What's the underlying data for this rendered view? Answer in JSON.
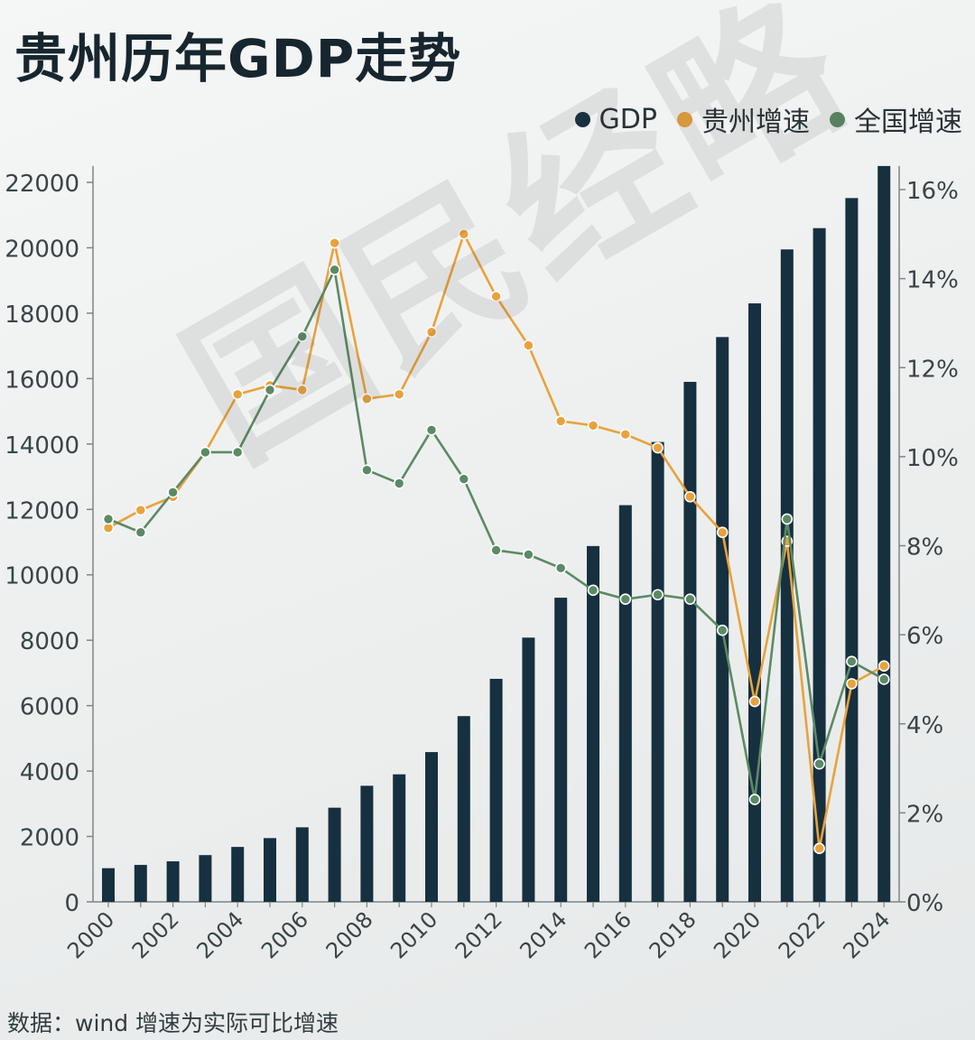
{
  "title": "贵州历年GDP走势",
  "watermark": "国民经略",
  "source": "数据：wind  增速为实际可比增速",
  "legend": [
    {
      "label": "GDP",
      "color": "#17303f"
    },
    {
      "label": "贵州增速",
      "color": "#e9a23b"
    },
    {
      "label": "全国增速",
      "color": "#5b8a64"
    }
  ],
  "chart_data": {
    "type": "bar",
    "title": "贵州历年GDP走势",
    "x": [
      2000,
      2001,
      2002,
      2003,
      2004,
      2005,
      2006,
      2007,
      2008,
      2009,
      2010,
      2011,
      2012,
      2013,
      2014,
      2015,
      2016,
      2017,
      2018,
      2019,
      2020,
      2021,
      2022,
      2023,
      2024
    ],
    "x_tick_labels": [
      "2000",
      "2002",
      "2004",
      "2006",
      "2008",
      "2010",
      "2012",
      "2014",
      "2016",
      "2018",
      "2020",
      "2022",
      "2024"
    ],
    "left_axis": {
      "ylim": [
        0,
        22500
      ],
      "ticks": [
        0,
        2000,
        4000,
        6000,
        8000,
        10000,
        12000,
        14000,
        16000,
        18000,
        20000,
        22000
      ]
    },
    "right_axis": {
      "ylim": [
        0,
        16.5
      ],
      "ticks": [
        0,
        2,
        4,
        6,
        8,
        10,
        12,
        14,
        16
      ],
      "tick_labels": [
        "0%",
        "2%",
        "4%",
        "6%",
        "8%",
        "10%",
        "12%",
        "14%",
        "16%"
      ]
    },
    "grid": false,
    "legend_position": "top-right",
    "series": [
      {
        "name": "GDP",
        "type": "bar",
        "axis": "left",
        "values": [
          1030,
          1130,
          1240,
          1430,
          1680,
          1950,
          2280,
          2880,
          3550,
          3900,
          4580,
          5680,
          6820,
          8080,
          9300,
          10880,
          12130,
          14060,
          15900,
          17270,
          18300,
          19950,
          20600,
          21520,
          22660
        ]
      },
      {
        "name": "贵州增速",
        "type": "line",
        "axis": "right",
        "values": [
          8.4,
          8.8,
          9.1,
          10.1,
          11.4,
          11.6,
          11.5,
          14.8,
          11.3,
          11.4,
          12.8,
          15.0,
          13.6,
          12.5,
          10.8,
          10.7,
          10.5,
          10.2,
          9.1,
          8.3,
          4.5,
          8.1,
          1.2,
          4.9,
          5.3
        ]
      },
      {
        "name": "全国增速",
        "type": "line",
        "axis": "right",
        "values": [
          8.6,
          8.3,
          9.2,
          10.1,
          10.1,
          11.5,
          12.7,
          14.2,
          9.7,
          9.4,
          10.6,
          9.5,
          7.9,
          7.8,
          7.5,
          7.0,
          6.8,
          6.9,
          6.8,
          6.1,
          2.3,
          8.6,
          3.1,
          5.4,
          5.0
        ]
      }
    ]
  }
}
